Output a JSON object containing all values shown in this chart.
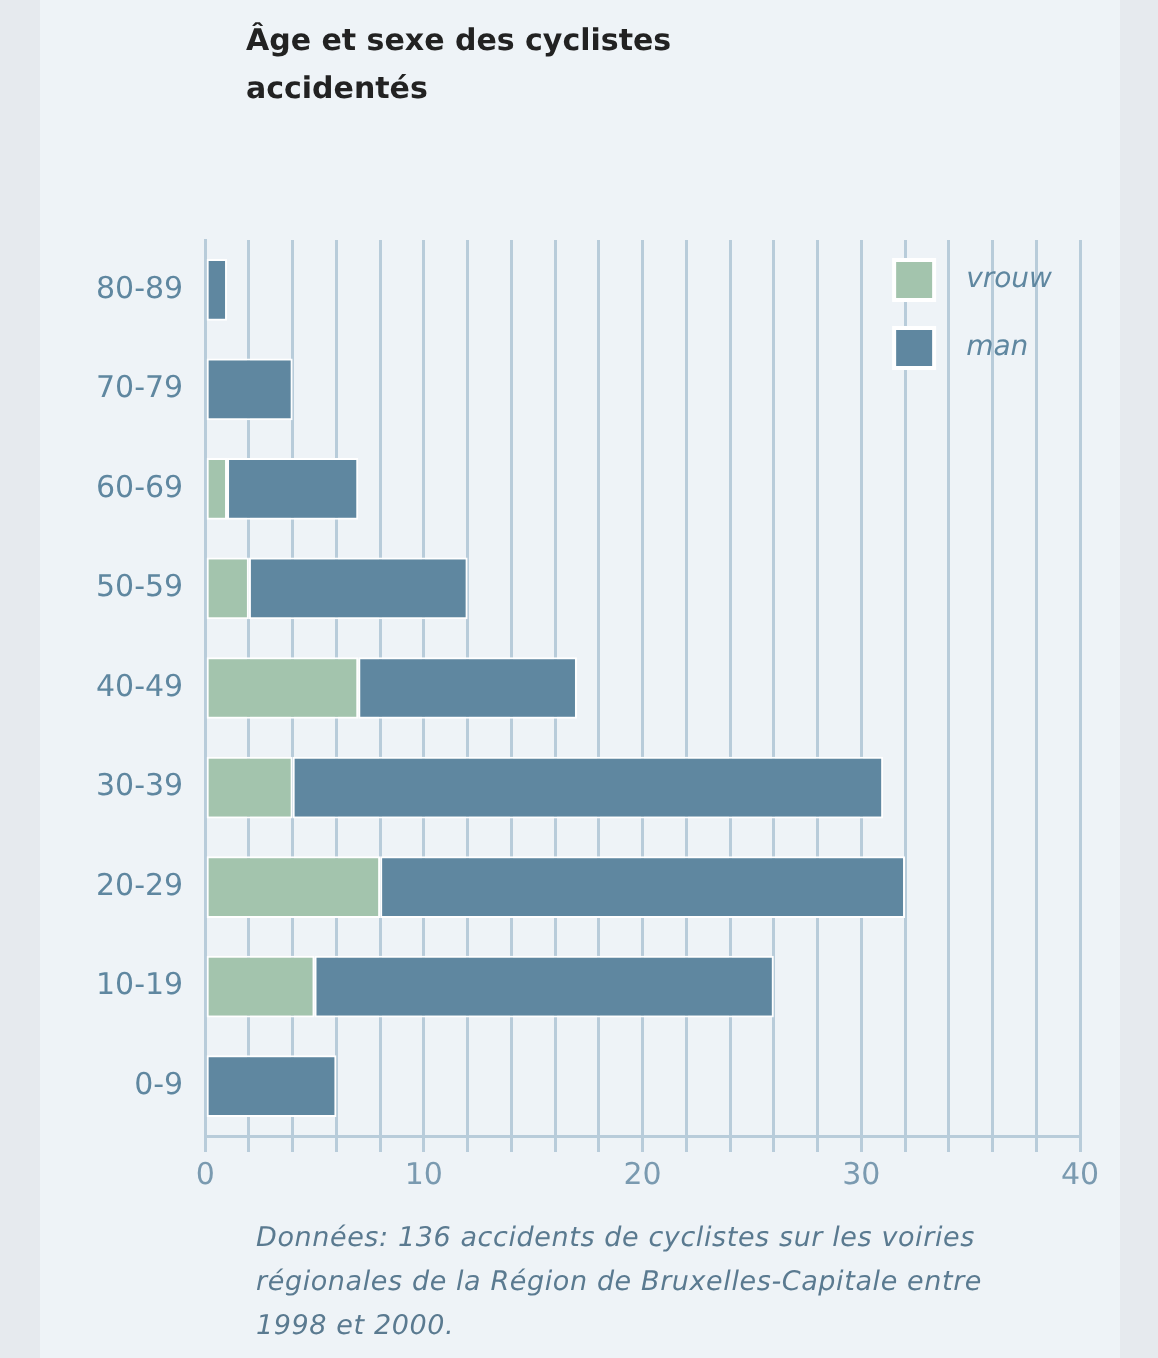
{
  "chart_data": {
    "type": "bar",
    "orientation": "horizontal",
    "stacked": true,
    "title": "Âge et sexe des cyclistes accidentés",
    "categories": [
      "80-89",
      "70-79",
      "60-69",
      "50-59",
      "40-49",
      "30-39",
      "20-29",
      "10-19",
      "0-9"
    ],
    "series": [
      {
        "name": "vrouw",
        "color": "#a3c4ad",
        "values": [
          0,
          0,
          1,
          2,
          7,
          4,
          8,
          5,
          0
        ]
      },
      {
        "name": "man",
        "color": "#5f87a0",
        "values": [
          1,
          4,
          6,
          10,
          10,
          27,
          24,
          21,
          6
        ]
      }
    ],
    "xlim": [
      0,
      40
    ],
    "xticks": [
      0,
      {
        "value": 2,
        "label": null
      },
      {
        "value": 4,
        "label": null
      },
      {
        "value": 6,
        "label": null
      },
      {
        "value": 8,
        "label": null
      },
      10,
      {
        "value": 12,
        "label": null
      },
      {
        "value": 14,
        "label": null
      },
      {
        "value": 16,
        "label": null
      },
      {
        "value": 18,
        "label": null
      },
      20,
      {
        "value": 22,
        "label": null
      },
      {
        "value": 24,
        "label": null
      },
      {
        "value": 26,
        "label": null
      },
      {
        "value": 28,
        "label": null
      },
      30,
      {
        "value": 32,
        "label": null
      },
      {
        "value": 34,
        "label": null
      },
      {
        "value": 36,
        "label": null
      },
      {
        "value": 38,
        "label": null
      },
      40
    ],
    "grid": "x",
    "legend": "top right",
    "annotations": [
      "Données: 136 accidents de cyclistes sur les voiries régionales de la Région de Bruxelles-Capitale entre 1998 et 2000."
    ]
  }
}
